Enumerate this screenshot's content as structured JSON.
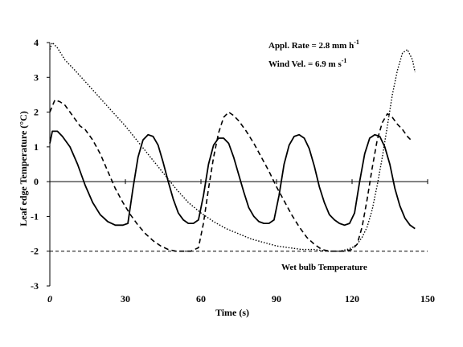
{
  "chart_data": {
    "type": "line",
    "xlabel": "Time (s)",
    "ylabel": "Leaf edge Temperature (°C)",
    "xlim": [
      0,
      150
    ],
    "ylim": [
      -3,
      4
    ],
    "xticks": [
      0,
      30,
      60,
      90,
      120,
      150
    ],
    "yticks": [
      -3,
      -2,
      -1,
      0,
      1,
      2,
      3,
      4
    ],
    "annotations": {
      "rate_label": "Appl. Rate = 2.8 mm h",
      "rate_sup": "-1",
      "wind_label": "Wind Vel. = 6.9 m s",
      "wind_sup": "-1",
      "wet_bulb_label": "Wet bulb Temperature"
    },
    "wet_bulb_temperature": -2,
    "series": [
      {
        "style": "solid",
        "x": [
          0,
          1,
          3,
          5,
          8,
          11,
          14,
          17,
          20,
          23,
          26,
          29,
          31,
          33,
          35,
          37,
          39,
          41,
          43,
          45,
          47,
          49,
          51,
          53,
          55,
          57,
          59,
          61,
          63,
          65,
          67,
          69,
          71,
          73,
          75,
          77,
          79,
          81,
          83,
          85,
          87,
          89,
          91,
          93,
          95,
          97,
          99,
          101,
          103,
          105,
          107,
          109,
          111,
          113,
          115,
          117,
          119,
          121,
          123,
          125,
          127,
          129,
          131,
          133,
          135,
          137,
          139,
          141,
          143,
          145
        ],
        "y": [
          1.1,
          1.45,
          1.45,
          1.3,
          1.0,
          0.5,
          -0.1,
          -0.6,
          -0.95,
          -1.15,
          -1.25,
          -1.25,
          -1.2,
          -0.2,
          0.7,
          1.2,
          1.35,
          1.3,
          1.05,
          0.55,
          0.0,
          -0.5,
          -0.9,
          -1.1,
          -1.2,
          -1.2,
          -1.1,
          -0.4,
          0.5,
          1.05,
          1.25,
          1.25,
          1.1,
          0.7,
          0.2,
          -0.3,
          -0.75,
          -1.0,
          -1.15,
          -1.2,
          -1.2,
          -1.1,
          -0.4,
          0.5,
          1.05,
          1.3,
          1.35,
          1.25,
          0.95,
          0.45,
          -0.15,
          -0.6,
          -0.95,
          -1.1,
          -1.2,
          -1.25,
          -1.2,
          -0.9,
          0.0,
          0.8,
          1.25,
          1.35,
          1.3,
          1.0,
          0.5,
          -0.2,
          -0.7,
          -1.05,
          -1.25,
          -1.35
        ]
      },
      {
        "style": "dashed",
        "x": [
          0,
          2,
          4,
          6,
          8,
          10,
          12,
          14,
          17,
          20,
          23,
          26,
          29,
          32,
          35,
          38,
          41,
          44,
          47,
          50,
          53,
          56,
          59,
          61,
          63,
          65,
          67,
          69,
          71,
          73,
          75,
          78,
          81,
          84,
          87,
          90,
          93,
          96,
          99,
          102,
          105,
          108,
          111,
          114,
          117,
          120,
          122,
          124,
          126,
          128,
          130,
          132,
          134,
          136,
          138,
          140,
          142,
          144
        ],
        "y": [
          2.0,
          2.35,
          2.3,
          2.2,
          2.0,
          1.8,
          1.6,
          1.5,
          1.2,
          0.8,
          0.3,
          -0.2,
          -0.6,
          -0.95,
          -1.25,
          -1.5,
          -1.7,
          -1.85,
          -1.95,
          -2.0,
          -2.0,
          -2.0,
          -1.9,
          -1.2,
          -0.2,
          0.7,
          1.4,
          1.85,
          2.0,
          1.9,
          1.75,
          1.45,
          1.1,
          0.7,
          0.3,
          -0.15,
          -0.55,
          -0.95,
          -1.3,
          -1.6,
          -1.8,
          -1.95,
          -2.0,
          -2.0,
          -2.0,
          -1.95,
          -1.8,
          -1.3,
          -0.5,
          0.4,
          1.2,
          1.7,
          1.95,
          1.85,
          1.65,
          1.5,
          1.3,
          1.15
        ]
      },
      {
        "style": "dotted",
        "x": [
          0,
          1,
          3,
          6,
          10,
          15,
          20,
          25,
          30,
          35,
          40,
          45,
          50,
          55,
          60,
          65,
          70,
          75,
          80,
          85,
          90,
          95,
          100,
          105,
          110,
          115,
          118,
          120,
          122,
          124,
          126,
          128,
          130,
          132,
          134,
          136,
          138,
          140,
          142,
          144,
          145
        ],
        "y": [
          3.8,
          4.0,
          3.85,
          3.5,
          3.2,
          2.8,
          2.4,
          2.0,
          1.6,
          1.15,
          0.7,
          0.25,
          -0.2,
          -0.6,
          -0.9,
          -1.15,
          -1.35,
          -1.5,
          -1.65,
          -1.75,
          -1.85,
          -1.9,
          -1.95,
          -1.95,
          -2.0,
          -2.0,
          -1.95,
          -1.9,
          -1.8,
          -1.6,
          -1.3,
          -0.8,
          -0.1,
          0.7,
          1.6,
          2.5,
          3.2,
          3.7,
          3.8,
          3.5,
          3.15
        ]
      }
    ]
  }
}
